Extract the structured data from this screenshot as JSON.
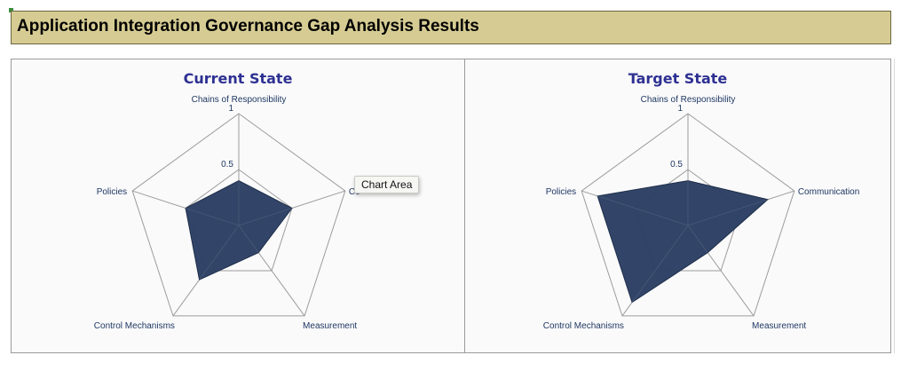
{
  "sheet": {
    "title": "Application Integration Governance Gap Analysis Results"
  },
  "tooltip": {
    "label": "Chart Area"
  },
  "colors": {
    "title_bg": "#d6cc93",
    "series_fill": "#2b3f63",
    "title_text": "#2e3192",
    "axis_label": "#1f3864"
  },
  "chart_data": [
    {
      "type": "radar",
      "title": "Current State",
      "categories": [
        "Chains of Responsibility",
        "Communication",
        "Measurement",
        "Control Mechanisms",
        "Policies"
      ],
      "category_labels": [
        "Chains of Responsibility",
        "Co",
        "Measurement",
        "Control Mechanisms",
        "Policies"
      ],
      "series": [
        {
          "values": [
            0.4,
            0.5,
            0.3,
            0.6,
            0.5
          ]
        }
      ],
      "rlim": [
        0,
        1
      ],
      "ticks": [
        "0.5",
        "1"
      ],
      "grid": true,
      "legend": "none"
    },
    {
      "type": "radar",
      "title": "Target State",
      "categories": [
        "Chains of Responsibility",
        "Communication",
        "Measurement",
        "Control Mechanisms",
        "Policies"
      ],
      "category_labels": [
        "Chains of Responsibility",
        "Communication",
        "Measurement",
        "Control Mechanisms",
        "Policies"
      ],
      "series": [
        {
          "values": [
            0.4,
            0.75,
            0.3,
            0.85,
            0.85
          ]
        }
      ],
      "rlim": [
        0,
        1
      ],
      "ticks": [
        "0.5",
        "1"
      ],
      "grid": true,
      "legend": "none"
    }
  ]
}
